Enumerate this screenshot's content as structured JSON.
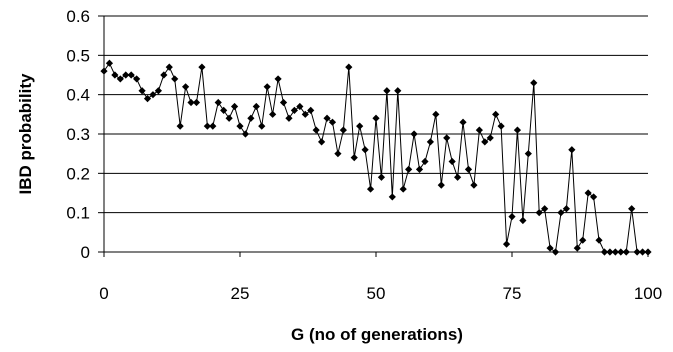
{
  "chart_data": {
    "type": "line",
    "title": "",
    "xlabel": "G (no of generations)",
    "ylabel": "IBD probability",
    "xlim": [
      0,
      100
    ],
    "ylim": [
      0,
      0.6
    ],
    "x_ticks": [
      "0",
      "25",
      "50",
      "75",
      "100"
    ],
    "y_ticks": [
      "0",
      "0.1",
      "0.2",
      "0.3",
      "0.4",
      "0.5",
      "0.6"
    ],
    "grid": "horizontal",
    "legend": "none",
    "marker": "diamond",
    "color": "#000000",
    "series": [
      {
        "x": [
          0,
          1,
          2,
          3,
          4,
          5,
          6,
          7,
          8,
          9,
          10,
          11,
          12,
          13,
          14,
          15,
          16,
          17,
          18,
          19,
          20,
          21,
          22,
          23,
          24,
          25,
          26,
          27,
          28,
          29,
          30,
          31,
          32,
          33,
          34,
          35,
          36,
          37,
          38,
          39,
          40,
          41,
          42,
          43,
          44,
          45,
          46,
          47,
          48,
          49,
          50,
          51,
          52,
          53,
          54,
          55,
          56,
          57,
          58,
          59,
          60,
          61,
          62,
          63,
          64,
          65,
          66,
          67,
          68,
          69,
          70,
          71,
          72,
          73,
          74,
          75,
          76,
          77,
          78,
          79,
          80,
          81,
          82,
          83,
          84,
          85,
          86,
          87,
          88,
          89,
          90,
          91,
          92,
          93,
          94,
          95,
          96,
          97,
          98,
          99,
          100
        ],
        "y": [
          0.46,
          0.48,
          0.45,
          0.44,
          0.45,
          0.45,
          0.44,
          0.41,
          0.39,
          0.4,
          0.41,
          0.45,
          0.47,
          0.44,
          0.32,
          0.42,
          0.38,
          0.38,
          0.47,
          0.32,
          0.32,
          0.38,
          0.36,
          0.34,
          0.37,
          0.32,
          0.3,
          0.34,
          0.37,
          0.32,
          0.42,
          0.35,
          0.44,
          0.38,
          0.34,
          0.36,
          0.37,
          0.35,
          0.36,
          0.31,
          0.28,
          0.34,
          0.33,
          0.25,
          0.31,
          0.47,
          0.24,
          0.32,
          0.26,
          0.16,
          0.34,
          0.19,
          0.41,
          0.14,
          0.41,
          0.16,
          0.21,
          0.3,
          0.21,
          0.23,
          0.28,
          0.35,
          0.17,
          0.29,
          0.23,
          0.19,
          0.33,
          0.21,
          0.17,
          0.31,
          0.28,
          0.29,
          0.35,
          0.32,
          0.02,
          0.09,
          0.31,
          0.08,
          0.25,
          0.43,
          0.1,
          0.11,
          0.01,
          0.0,
          0.1,
          0.11,
          0.26,
          0.01,
          0.03,
          0.15,
          0.14,
          0.03,
          0.0,
          0.0,
          0.0,
          0.0,
          0.0,
          0.11,
          0.0,
          0.0,
          0.0
        ]
      }
    ]
  }
}
